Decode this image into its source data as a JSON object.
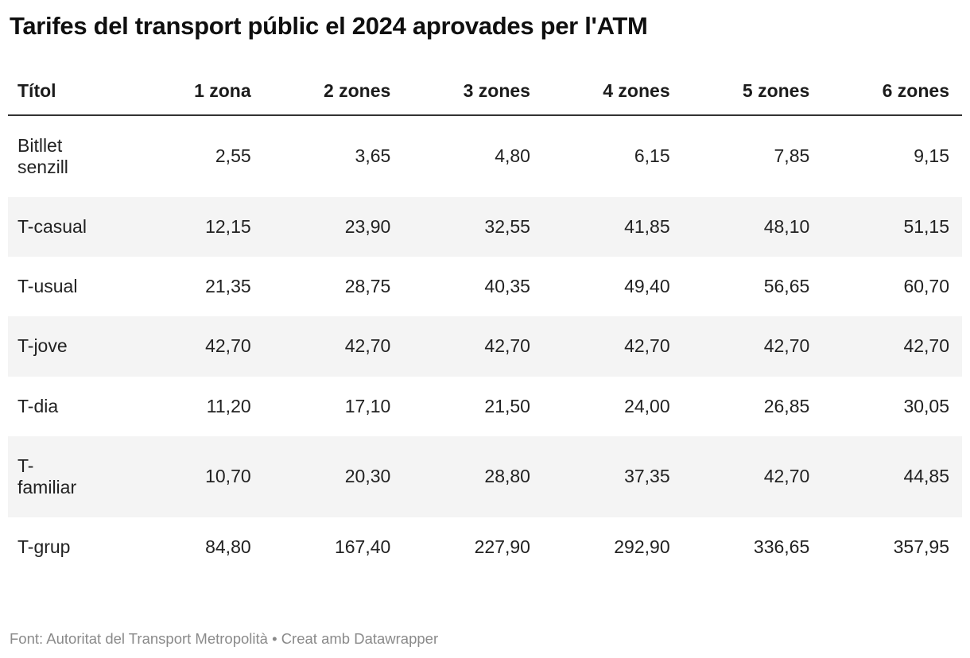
{
  "title": "Tarifes del transport públic el 2024 aprovades per l'ATM",
  "table": {
    "columns": [
      "Títol",
      "1 zona",
      "2 zones",
      "3 zones",
      "4 zones",
      "5 zones",
      "6 zones"
    ],
    "rows": [
      {
        "label": "Bitllet\nsenzill",
        "values": [
          "2,55",
          "3,65",
          "4,80",
          "6,15",
          "7,85",
          "9,15"
        ]
      },
      {
        "label": "T-casual",
        "values": [
          "12,15",
          "23,90",
          "32,55",
          "41,85",
          "48,10",
          "51,15"
        ]
      },
      {
        "label": "T-usual",
        "values": [
          "21,35",
          "28,75",
          "40,35",
          "49,40",
          "56,65",
          "60,70"
        ]
      },
      {
        "label": "T-jove",
        "values": [
          "42,70",
          "42,70",
          "42,70",
          "42,70",
          "42,70",
          "42,70"
        ]
      },
      {
        "label": "T-dia",
        "values": [
          "11,20",
          "17,10",
          "21,50",
          "24,00",
          "26,85",
          "30,05"
        ]
      },
      {
        "label": "T-\nfamiliar",
        "values": [
          "10,70",
          "20,30",
          "28,80",
          "37,35",
          "42,70",
          "44,85"
        ]
      },
      {
        "label": "T-grup",
        "values": [
          "84,80",
          "167,40",
          "227,90",
          "292,90",
          "336,65",
          "357,95"
        ]
      }
    ]
  },
  "footer": "Font: Autoritat del Transport Metropolità • Creat amb Datawrapper",
  "colors": {
    "background": "#ffffff",
    "title_text": "#0f0f0f",
    "body_text": "#222222",
    "zebra_stripe": "#f4f4f4",
    "header_rule": "#333333",
    "footer_text": "#8a8a8a"
  },
  "chart_data": {
    "type": "table",
    "title": "Tarifes del transport públic el 2024 aprovades per l'ATM",
    "columns": [
      "Títol",
      "1 zona",
      "2 zones",
      "3 zones",
      "4 zones",
      "5 zones",
      "6 zones"
    ],
    "rows": [
      [
        "Bitllet senzill",
        2.55,
        3.65,
        4.8,
        6.15,
        7.85,
        9.15
      ],
      [
        "T-casual",
        12.15,
        23.9,
        32.55,
        41.85,
        48.1,
        51.15
      ],
      [
        "T-usual",
        21.35,
        28.75,
        40.35,
        49.4,
        56.65,
        60.7
      ],
      [
        "T-jove",
        42.7,
        42.7,
        42.7,
        42.7,
        42.7,
        42.7
      ],
      [
        "T-dia",
        11.2,
        17.1,
        21.5,
        24.0,
        26.85,
        30.05
      ],
      [
        "T-familiar",
        10.7,
        20.3,
        28.8,
        37.35,
        42.7,
        44.85
      ],
      [
        "T-grup",
        84.8,
        167.4,
        227.9,
        292.9,
        336.65,
        357.95
      ]
    ],
    "notes": "Decimal comma formatting in display; zebra striping on even rows; source footer shown below table"
  }
}
